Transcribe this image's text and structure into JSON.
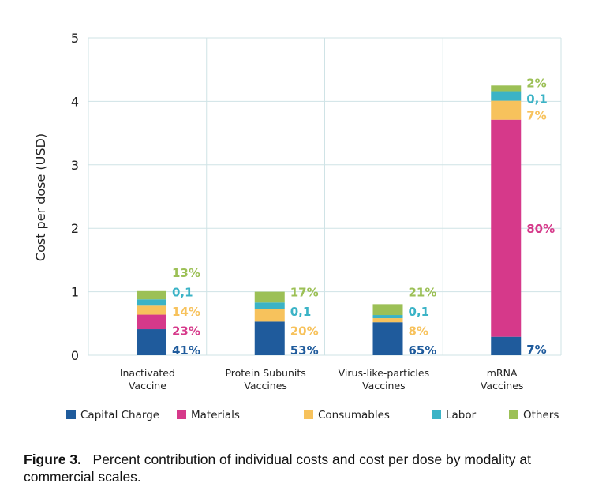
{
  "chart_data": {
    "type": "bar",
    "stacked": true,
    "ylabel": "Cost per dose (USD)",
    "ylim": [
      0,
      5
    ],
    "yticks": [
      "0",
      "1",
      "2",
      "3",
      "4",
      "5"
    ],
    "grid": true,
    "legend_position": "bottom",
    "categories": [
      [
        "Inactivated",
        "Vaccine"
      ],
      [
        "Protein Subunits",
        "Vaccines"
      ],
      [
        "Virus-like-particles",
        "Vaccines"
      ],
      [
        "mRNA",
        "Vaccines"
      ]
    ],
    "series": [
      {
        "name": "Capital Charge",
        "color": "#1f5b9c",
        "values": [
          0.41,
          0.53,
          0.52,
          0.29
        ]
      },
      {
        "name": "Materials",
        "color": "#d6398a",
        "values": [
          0.23,
          0.0,
          0.0,
          3.42
        ]
      },
      {
        "name": "Consumables",
        "color": "#f7c25c",
        "values": [
          0.14,
          0.2,
          0.064,
          0.3
        ]
      },
      {
        "name": "Labor",
        "color": "#3bb3c6",
        "values": [
          0.1,
          0.1,
          0.05,
          0.15
        ]
      },
      {
        "name": "Others",
        "color": "#9cc056",
        "values": [
          0.13,
          0.17,
          0.17,
          0.09
        ]
      }
    ],
    "data_labels": [
      [
        {
          "text": "41%",
          "series": 0
        },
        {
          "text": "23%",
          "series": 1
        },
        {
          "text": "14%",
          "series": 2
        },
        {
          "text": "0,1",
          "series": 3
        },
        {
          "text": "13%",
          "series": 4
        }
      ],
      [
        {
          "text": "53%",
          "series": 0
        },
        {
          "text": "20%",
          "series": 2
        },
        {
          "text": "0,1",
          "series": 3
        },
        {
          "text": "17%",
          "series": 4
        }
      ],
      [
        {
          "text": "65%",
          "series": 0
        },
        {
          "text": "8%",
          "series": 2
        },
        {
          "text": "0,1",
          "series": 3
        },
        {
          "text": "21%",
          "series": 4
        }
      ],
      [
        {
          "text": "7%",
          "series": 0
        },
        {
          "text": "80%",
          "series": 1
        },
        {
          "text": "7%",
          "series": 2
        },
        {
          "text": "0,1",
          "series": 3
        },
        {
          "text": "2%",
          "series": 4
        }
      ]
    ]
  },
  "caption": {
    "label": "Figure 3.",
    "text": "Percent contribution of individual costs and cost per dose by modality at commercial scales."
  }
}
